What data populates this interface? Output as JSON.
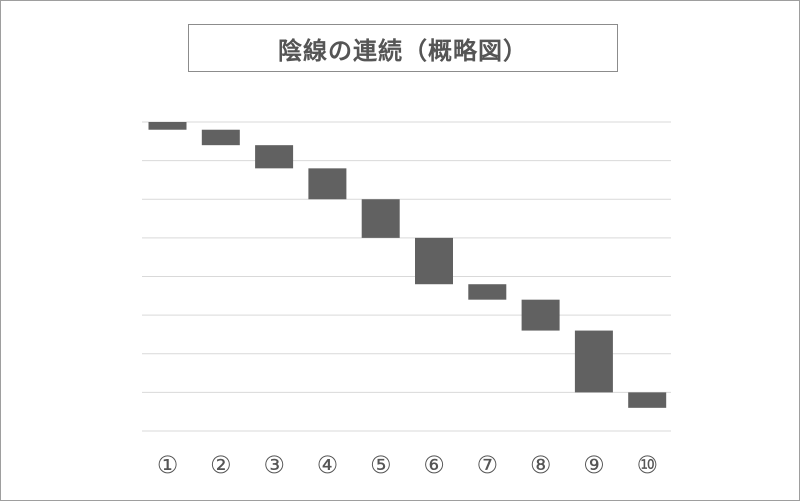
{
  "chart_data": {
    "type": "bar",
    "title": "陰線の連続（概略図）",
    "categories": [
      "①",
      "②",
      "③",
      "④",
      "⑤",
      "⑥",
      "⑦",
      "⑧",
      "⑨",
      "⑩"
    ],
    "candles": [
      {
        "open": 0.0,
        "close": -0.2
      },
      {
        "open": -0.2,
        "close": -0.6
      },
      {
        "open": -0.6,
        "close": -1.2
      },
      {
        "open": -1.2,
        "close": -2.0
      },
      {
        "open": -2.0,
        "close": -3.0
      },
      {
        "open": -3.0,
        "close": -4.2
      },
      {
        "open": -4.2,
        "close": -4.6
      },
      {
        "open": -4.6,
        "close": -5.4
      },
      {
        "open": -5.4,
        "close": -7.0
      },
      {
        "open": -7.0,
        "close": -7.4
      }
    ],
    "ylim": [
      -8,
      0
    ],
    "yticks_shown": false,
    "grid": true,
    "legend": "none",
    "colors": {
      "bar": "#616161",
      "grid": "#d9d9d9",
      "tick_label": "#555555",
      "frame": "#9e9e9e"
    }
  }
}
